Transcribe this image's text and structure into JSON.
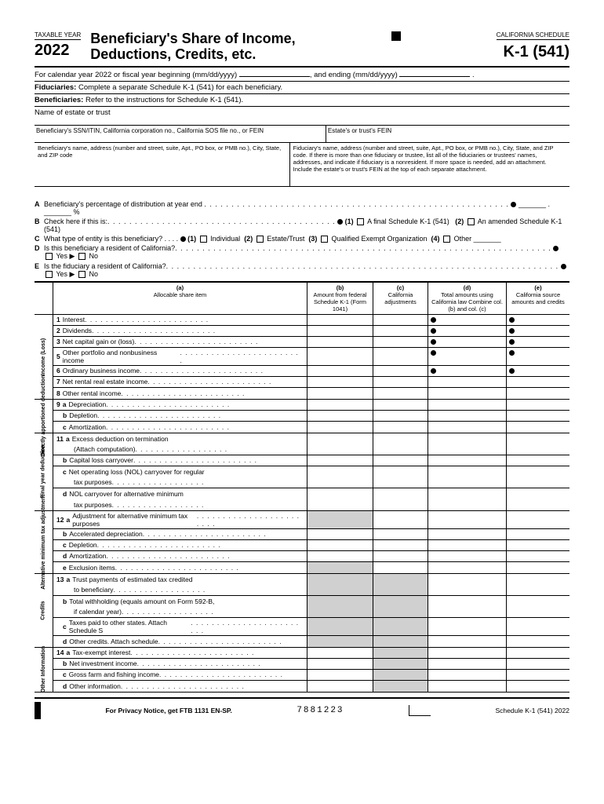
{
  "header": {
    "taxable_year_label": "TAXABLE YEAR",
    "year": "2022",
    "title_line1": "Beneficiary's Share of Income,",
    "title_line2": "Deductions, Credits, etc.",
    "ca_schedule": "CALIFORNIA SCHEDULE",
    "form_number": "K-1 (541)"
  },
  "instructions": {
    "line1a": "For calendar year 2022 or fiscal year beginning (mm/dd/yyyy) ",
    "line1b": ", and ending (mm/dd/yyyy) ",
    "line2_bold": "Fiduciaries:",
    "line2_text": " Complete a separate Schedule K-1 (541) for each beneficiary.",
    "line3_bold": "Beneficiaries:",
    "line3_text": " Refer to the instructions for Schedule K-1 (541)."
  },
  "name_label": "Name of estate or trust",
  "id_row": {
    "left": "Beneficiary's SSN/ITIN, California corporation no., California SOS file no., or FEIN",
    "right": "Estate's or trust's FEIN"
  },
  "addr_row": {
    "left": "Beneficiary's name, address (number and street, suite, Apt., PO box, or PMB no.), City, State, and ZIP code",
    "right": "Fiduciary's name, address (number and street, suite, Apt., PO box, or PMB no.), City, State, and ZIP code. If there is more than one fiduciary or trustee, list all of the fiduciaries or trustees' names, addresses, and indicate if fiduciary is a nonresident. If more space is needed, add an attachment. Include the estate's or trust's FEIN at the top of each separate attachment."
  },
  "qa": {
    "A": "Beneficiary's percentage of distribution at year end",
    "A_suffix": "%",
    "B": "Check here if this is:",
    "B_opt1": "A final Schedule K-1 (541)",
    "B_opt2": "An amended Schedule K-1 (541)",
    "C": "What type of entity is this beneficiary?",
    "C_opt1": "Individual",
    "C_opt2": "Estate/Trust",
    "C_opt3": "Qualified Exempt Organization",
    "C_opt4": "Other",
    "D": "Is this beneficiary a resident of California?",
    "E": "Is the fiduciary a resident of California?",
    "yes": "Yes",
    "no": "No"
  },
  "columns": {
    "a_label": "(a)",
    "a_text": "Allocable share item",
    "b_label": "(b)",
    "b_text": "Amount from federal Schedule K-1 (Form 1041)",
    "c_label": "(c)",
    "c_text": "California adjustments",
    "d_label": "(d)",
    "d_text": "Total amounts using California law Combine col. (b) and col. (c)",
    "e_label": "(e)",
    "e_text": "California source amounts and credits"
  },
  "sections": [
    {
      "label": "Income (Loss)",
      "rows": [
        {
          "num": "1",
          "text": "Interest",
          "dots_d": true,
          "dots_e": true
        },
        {
          "num": "2",
          "text": "Dividends",
          "dots_d": true,
          "dots_e": true
        },
        {
          "num": "3",
          "text": "Net capital gain or (loss)",
          "dots_d": true,
          "dots_e": true
        },
        {
          "num": "5",
          "text": "Other portfolio and nonbusiness income",
          "dots_d": true,
          "dots_e": true
        },
        {
          "num": "6",
          "text": "Ordinary business income",
          "dots_d": true,
          "dots_e": true
        },
        {
          "num": "7",
          "text": "Net rental real estate income"
        },
        {
          "num": "8",
          "text": "Other rental income"
        }
      ]
    },
    {
      "label": "Directly apportioned deduction",
      "rows": [
        {
          "num": "9",
          "sub": "a",
          "text": "Depreciation"
        },
        {
          "sub": "b",
          "text": "Depletion"
        },
        {
          "sub": "c",
          "text": "Amortization"
        }
      ]
    },
    {
      "label": "Final year deduction",
      "rows": [
        {
          "num": "11",
          "sub": "a",
          "text": "Excess deduction on termination",
          "text2": "(Attach computation)"
        },
        {
          "sub": "b",
          "text": "Capital loss carryover"
        },
        {
          "sub": "c",
          "text": "Net operating loss (NOL) carryover for regular",
          "text2": "tax purposes"
        },
        {
          "sub": "d",
          "text": "NOL carryover for alternative minimum",
          "text2": "tax purposes"
        }
      ]
    },
    {
      "label": "Alternative minimum tax adjustment",
      "rows": [
        {
          "num": "12",
          "sub": "a",
          "text": "Adjustment for alternative minimum tax purposes",
          "shade_b": true
        },
        {
          "sub": "b",
          "text": "Accelerated depreciation"
        },
        {
          "sub": "c",
          "text": "Depletion"
        },
        {
          "sub": "d",
          "text": "Amortization"
        },
        {
          "sub": "e",
          "text": "Exclusion items",
          "shade_b": true
        }
      ]
    },
    {
      "label": "Credits",
      "rows": [
        {
          "num": "13",
          "sub": "a",
          "text": "Trust payments of estimated tax credited",
          "text2": "to beneficiary",
          "shade_b": true,
          "shade_c": true
        },
        {
          "sub": "b",
          "text": "Total withholding (equals amount on Form 592-B,",
          "text2": "if calendar year)",
          "shade_b": true,
          "shade_c": true
        },
        {
          "sub": "c",
          "text": "Taxes paid to other states. Attach Schedule S",
          "shade_b": true,
          "shade_c": true
        },
        {
          "sub": "d",
          "text": "Other credits. Attach schedule",
          "shade_b": true,
          "shade_c": true
        }
      ]
    },
    {
      "label": "Other Information",
      "rows": [
        {
          "num": "14",
          "sub": "a",
          "text": "Tax-exempt interest",
          "shade_c": true
        },
        {
          "sub": "b",
          "text": "Net investment income",
          "shade_c": true
        },
        {
          "sub": "c",
          "text": "Gross farm and fishing income",
          "shade_c": true
        },
        {
          "sub": "d",
          "text": "Other information",
          "shade_c": true
        }
      ]
    }
  ],
  "footer": {
    "privacy": "For Privacy Notice, get FTB 1131 EN-SP.",
    "code": "7881223",
    "right": "Schedule K-1 (541) 2022"
  }
}
